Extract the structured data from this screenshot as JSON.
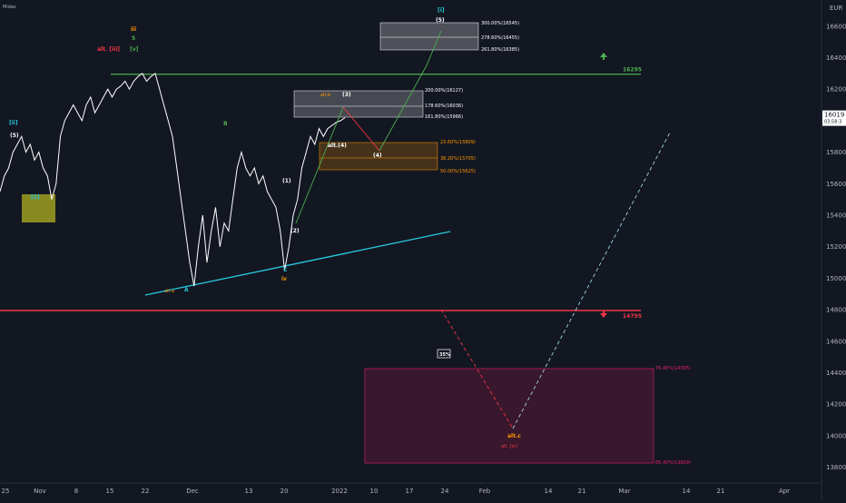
{
  "header": {
    "symbol_hint": "Midas",
    "currency": "EUR"
  },
  "price_tag": {
    "value": "16019",
    "timer": "03:58:3"
  },
  "chart_data": {
    "type": "line",
    "title": "",
    "ylim": [
      13700,
      16720
    ],
    "x_ticks": [
      "25",
      "Nov",
      "8",
      "15",
      "22",
      "Dec",
      "13",
      "20",
      "2022",
      "10",
      "17",
      "24",
      "Feb",
      "14",
      "21",
      "Mar",
      "14",
      "21",
      "Apr"
    ],
    "y_ticks": [
      16600,
      16400,
      16200,
      16000,
      15800,
      15600,
      15400,
      15200,
      15000,
      14800,
      14600,
      14400,
      14200,
      14000,
      13800
    ],
    "series": [
      {
        "values": [
          15550,
          15650,
          15700,
          15800,
          15850,
          15900,
          15800,
          15850,
          15750,
          15800,
          15700,
          15650,
          15500,
          15600,
          15900,
          16000,
          16050,
          16100,
          16050,
          16000,
          16100,
          16150,
          16050,
          16100,
          16150,
          16200,
          16150,
          16200,
          16220,
          16250,
          16200,
          16250,
          16280,
          16300,
          16250,
          16280,
          16300,
          16200,
          16100,
          16000,
          15900,
          15700,
          15500,
          15300,
          15100,
          14950,
          15200,
          15400,
          15100,
          15300,
          15450,
          15200,
          15350,
          15300,
          15500,
          15700,
          15800,
          15700,
          15650,
          15700,
          15600,
          15650,
          15550,
          15500,
          15450,
          15300,
          15050,
          15200,
          15400,
          15500,
          15700,
          15800,
          15900,
          15850,
          15950,
          15900,
          15950,
          15970,
          15990,
          16000,
          16019
        ]
      }
    ],
    "key_levels": [
      {
        "label": "16295",
        "value": 16295,
        "color": "#4caf50"
      },
      {
        "label": "14795",
        "value": 14795,
        "color": "#f23645"
      }
    ],
    "fib_labels": {
      "upper": [
        "300.00%(16545)",
        "278.60%(16455)",
        "261.80%(16385)"
      ],
      "mid": [
        "200.00%(16127)",
        "178.60%(16036)",
        "161.80%(15966)"
      ],
      "orange": [
        "23.60%(15809)",
        "38.20%(15705)",
        "50.00%(15625)"
      ],
      "pink": [
        "76.40%(14395)",
        "85.40%(13809)"
      ]
    },
    "waves": {
      "w_ii": "[ii]",
      "w_5": "(5)",
      "w_alt_iii": "alt. [iii]",
      "w_v": "[v]",
      "w_iii": "iii",
      "w_s": "5",
      "w_b": "B",
      "w_1": "(1)",
      "w_2": "(2)",
      "w_c": "C",
      "w_iv": "iv",
      "w_a": "A",
      "w_alt_a": "alt.a",
      "w_alt3": "alt.b",
      "w_3": "(3)",
      "w_alt4": "alt.(4)",
      "w_4": "(4)",
      "w_top5": "(5)",
      "w_top_i": "[i]",
      "w_alt_c": "alt.c",
      "w_alt_iv": "alt. [iv]",
      "w_ii_box": "[ii]"
    },
    "probability": "35%"
  },
  "colors": {
    "bg": "#131722",
    "price": "#ffffff",
    "green": "#4caf50",
    "red": "#f23645",
    "cyan": "#26c6da",
    "orange": "#ff9800",
    "yellow_box": "#9c9c1a",
    "pink_box": "#4a1b30"
  }
}
